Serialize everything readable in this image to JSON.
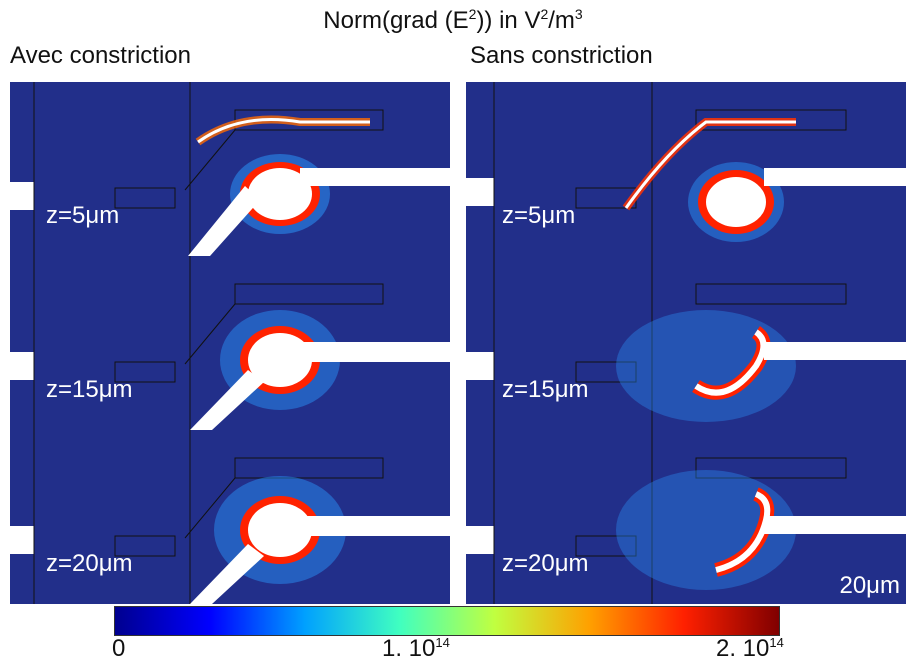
{
  "title": {
    "main": "Norm(grad (E",
    "exp": "2",
    "mid": ")) in V",
    "exp2": "2",
    "end": "/m",
    "exp3": "3"
  },
  "columns": {
    "left": "Avec constriction",
    "right": "Sans constriction"
  },
  "panels": {
    "left": [
      {
        "z": "z=5μm"
      },
      {
        "z": "z=15μm"
      },
      {
        "z": "z=20μm"
      }
    ],
    "right": [
      {
        "z": "z=5μm"
      },
      {
        "z": "z=15μm"
      },
      {
        "z": "z=20μm"
      }
    ]
  },
  "scale_bar": "20μm",
  "colorbar": {
    "min_label": "0",
    "mid_base": "1. 10",
    "mid_exp": "14",
    "max_base": "2. 10",
    "max_exp": "14",
    "range": [
      0,
      200000000000000.0
    ],
    "colors": [
      "#00008f",
      "#0000ff",
      "#00a0ff",
      "#40ffc0",
      "#c0ff40",
      "#ffa000",
      "#ff2000",
      "#800000"
    ]
  }
}
